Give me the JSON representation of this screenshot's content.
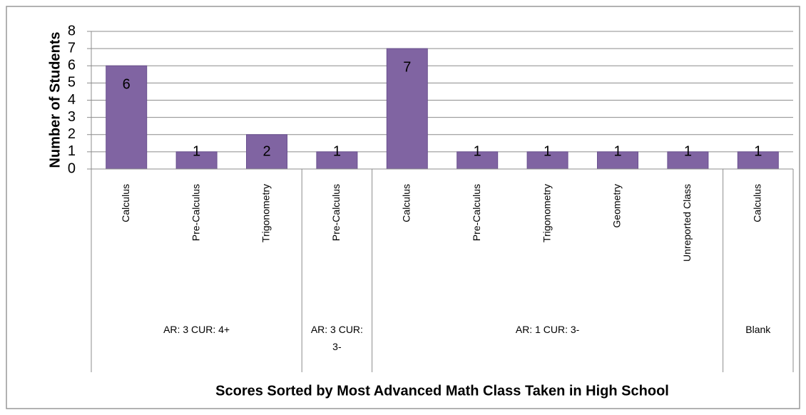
{
  "chart_data": {
    "type": "bar",
    "y_axis_label": "Number of Students",
    "x_axis_label": "Scores Sorted by Most Advanced Math Class Taken in High School",
    "color": "#8064a2",
    "ylim": [
      0,
      8
    ],
    "yticks": [
      0,
      1,
      2,
      3,
      4,
      5,
      6,
      7,
      8
    ],
    "grid": true,
    "groups": [
      {
        "name": "AR: 3 CUR: 4+",
        "categories": [
          "Calculus",
          "Pre-Calculus",
          "Trigonometry"
        ],
        "values": [
          6,
          1,
          2
        ]
      },
      {
        "name": "AR: 3 CUR: 3-",
        "categories": [
          "Pre-Calculus"
        ],
        "values": [
          1
        ]
      },
      {
        "name": "AR: 1 CUR: 3-",
        "categories": [
          "Calculus",
          "Pre-Calculus",
          "Trigonometry",
          "Geometry",
          "Unreported Class"
        ],
        "values": [
          7,
          1,
          1,
          1,
          1
        ]
      },
      {
        "name": "Blank",
        "categories": [
          "Calculus"
        ],
        "values": [
          1
        ]
      }
    ]
  }
}
